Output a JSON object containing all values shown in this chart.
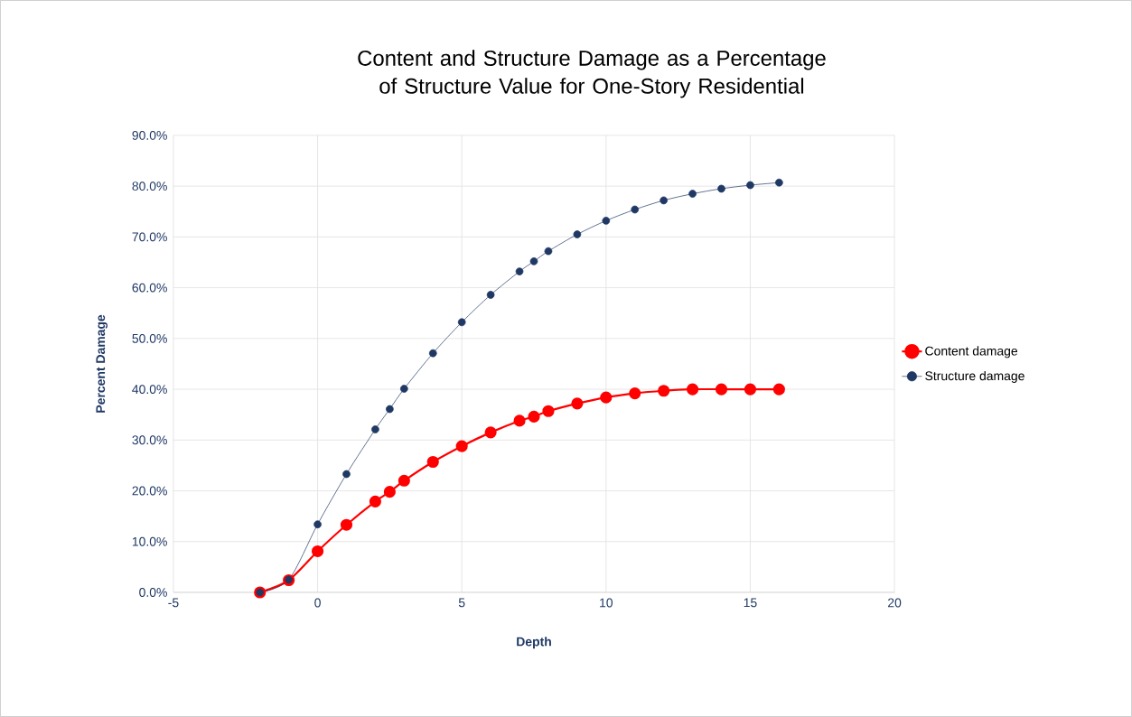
{
  "chart_data": {
    "type": "line",
    "title": "Content and Structure Damage as a Percentage of Structure Value for One-Story Residential",
    "xlabel": "Depth",
    "ylabel": "Percent Damage",
    "series": [
      {
        "name": "Content damage",
        "color": "#ff0000",
        "x": [
          -2,
          -1,
          0,
          1,
          2,
          2.5,
          3,
          4,
          5,
          6,
          7,
          7.5,
          8,
          9,
          10,
          11,
          12,
          13,
          14,
          15,
          16
        ],
        "values": [
          0,
          2.4,
          8.1,
          13.3,
          17.9,
          19.8,
          22.0,
          25.7,
          28.8,
          31.5,
          33.8,
          34.6,
          35.7,
          37.2,
          38.4,
          39.2,
          39.7,
          40.0,
          40.0,
          40.0,
          40.0
        ]
      },
      {
        "name": "Structure damage",
        "color": "#203864",
        "x": [
          -2,
          -1,
          0,
          1,
          2,
          2.5,
          3,
          4,
          5,
          6,
          7,
          7.5,
          8,
          9,
          10,
          11,
          12,
          13,
          14,
          15,
          16
        ],
        "values": [
          0,
          2.5,
          13.4,
          23.3,
          32.1,
          36.1,
          40.1,
          47.1,
          53.2,
          58.6,
          63.2,
          65.2,
          67.2,
          70.5,
          73.2,
          75.4,
          77.2,
          78.5,
          79.5,
          80.2,
          80.7
        ]
      }
    ],
    "xlim": [
      -5,
      20
    ],
    "xticks": [
      -5,
      0,
      5,
      10,
      15,
      20
    ],
    "ylim": [
      0,
      90
    ],
    "yticks": [
      {
        "value": 0,
        "label": "0.0%"
      },
      {
        "value": 10,
        "label": "10.0%"
      },
      {
        "value": 20,
        "label": "20.0%"
      },
      {
        "value": 30,
        "label": "30.0%"
      },
      {
        "value": 40,
        "label": "40.0%"
      },
      {
        "value": 50,
        "label": "50.0%"
      },
      {
        "value": 60,
        "label": "60.0%"
      },
      {
        "value": 70,
        "label": "70.0%"
      },
      {
        "value": 80,
        "label": "80.0%"
      },
      {
        "value": 90,
        "label": "90.0%"
      }
    ],
    "grid": true,
    "legend": "right",
    "marker": "circle",
    "line_style": "solid"
  }
}
